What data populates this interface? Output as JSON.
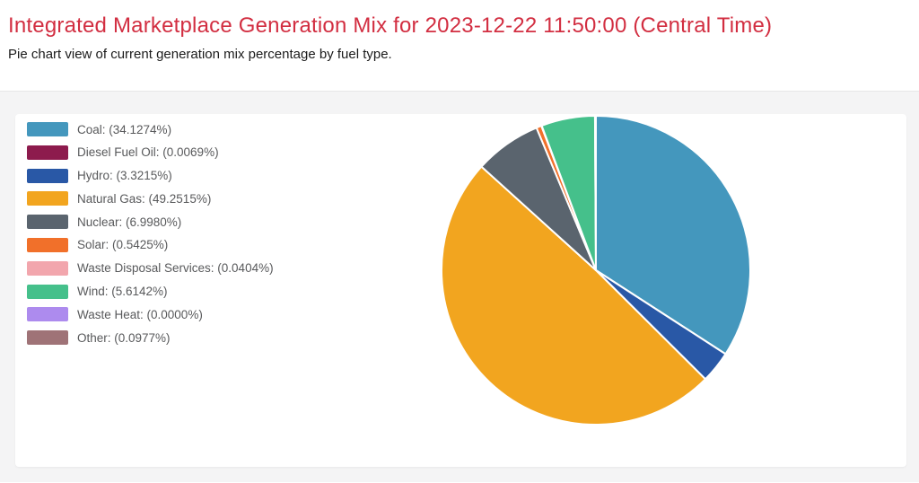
{
  "page": {
    "title": "Integrated Marketplace Generation Mix for 2023-12-22 11:50:00 (Central Time)",
    "subtitle": "Pie chart view of current generation mix percentage by fuel type."
  },
  "theme": {
    "title_color": "#d22e41",
    "subtitle_color": "#1b1b1b",
    "legend_text_color": "#58595b",
    "section_background": "#f4f4f5",
    "card_background": "#ffffff",
    "slice_border_color": "#ffffff"
  },
  "chart_data": {
    "type": "pie",
    "title": "Integrated Marketplace Generation Mix for 2023-12-22 11:50:00 (Central Time)",
    "subtitle": "Pie chart view of current generation mix percentage by fuel type.",
    "unit": "%",
    "legend_position": "left",
    "start_angle_deg": 0,
    "direction": "clockwise",
    "slices": [
      {
        "label": "Coal",
        "value": 34.1274,
        "display": "Coal: (34.1274%)",
        "color": "#4497bd"
      },
      {
        "label": "Diesel Fuel Oil",
        "value": 0.0069,
        "display": "Diesel Fuel Oil: (0.0069%)",
        "color": "#8d1b4d"
      },
      {
        "label": "Hydro",
        "value": 3.3215,
        "display": "Hydro: (3.3215%)",
        "color": "#2958a6"
      },
      {
        "label": "Natural Gas",
        "value": 49.2515,
        "display": "Natural Gas: (49.2515%)",
        "color": "#f2a51f"
      },
      {
        "label": "Nuclear",
        "value": 6.998,
        "display": "Nuclear: (6.9980%)",
        "color": "#5a646e"
      },
      {
        "label": "Solar",
        "value": 0.5425,
        "display": "Solar: (0.5425%)",
        "color": "#f1702a"
      },
      {
        "label": "Waste Disposal Services",
        "value": 0.0404,
        "display": "Waste Disposal Services: (0.0404%)",
        "color": "#f2a6ad"
      },
      {
        "label": "Wind",
        "value": 5.6142,
        "display": "Wind: (5.6142%)",
        "color": "#45c08b"
      },
      {
        "label": "Waste Heat",
        "value": 0.0,
        "display": "Waste Heat: (0.0000%)",
        "color": "#ad8bee"
      },
      {
        "label": "Other",
        "value": 0.0977,
        "display": "Other: (0.0977%)",
        "color": "#9f7377"
      }
    ]
  }
}
